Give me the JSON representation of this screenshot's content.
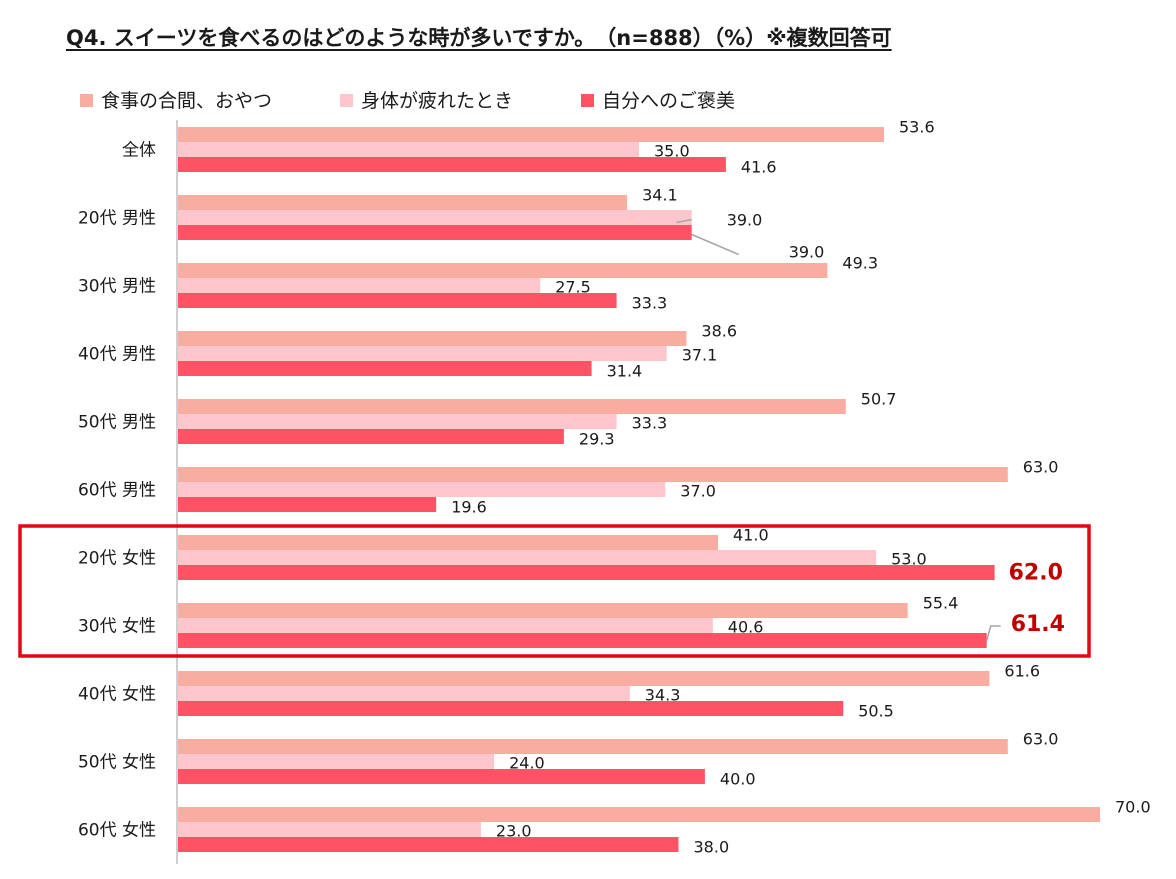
{
  "chart_data": {
    "type": "bar",
    "orientation": "horizontal",
    "title": "Q4. スイーツを食べるのはどのような時が多いですか。　（n=888）（%）※複数回答可",
    "categories": [
      "全体",
      "20代 男性",
      "30代 男性",
      "40代 男性",
      "50代 男性",
      "60代 男性",
      "20代 女性",
      "30代 女性",
      "40代 女性",
      "50代 女性",
      "60代 女性"
    ],
    "series": [
      {
        "name": "食事の合間、おやつ",
        "color": "#F9ADA0",
        "values": [
          53.6,
          34.1,
          49.3,
          38.6,
          50.7,
          63.0,
          41.0,
          55.4,
          61.6,
          63.0,
          70.0
        ]
      },
      {
        "name": "身体が疲れたとき",
        "color": "#FDC5CC",
        "values": [
          35.0,
          39.0,
          27.5,
          37.1,
          33.3,
          37.0,
          53.0,
          40.6,
          34.3,
          24.0,
          23.0
        ]
      },
      {
        "name": "自分へのご褒美",
        "color": "#FE5364",
        "values": [
          41.6,
          39.0,
          33.3,
          31.4,
          29.3,
          19.6,
          62.0,
          61.4,
          50.5,
          40.0,
          38.0
        ]
      }
    ],
    "xlim": [
      0,
      70
    ],
    "legend_position": "top-left",
    "grid": false,
    "highlight": {
      "categories": [
        "20代 女性",
        "30代 女性"
      ],
      "series": "自分へのご褒美",
      "box_color": "#E30613",
      "label_color": "#C00000"
    }
  }
}
